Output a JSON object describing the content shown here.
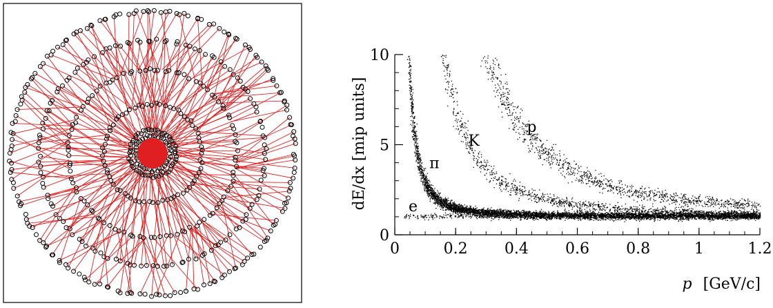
{
  "chart_data": [
    {
      "type": "diagram",
      "title": "",
      "frame": true,
      "colors": {
        "hit_stroke": "#000000",
        "track_line": "#e02020",
        "center_fill": "#e02020",
        "frame": "#000000"
      },
      "layers": [
        {
          "radius_fraction": 0.06,
          "hits": 12
        },
        {
          "radius_fraction": 0.12,
          "hits": 40
        },
        {
          "radius_fraction": 0.16,
          "hits": 54
        },
        {
          "radius_fraction": 0.34,
          "hits": 70
        },
        {
          "radius_fraction": 0.58,
          "hits": 100
        },
        {
          "radius_fraction": 0.78,
          "hits": 130
        },
        {
          "radius_fraction": 0.98,
          "hits": 180
        }
      ]
    },
    {
      "type": "scatter",
      "title": "",
      "xlabel_var": "p",
      "xlabel_unit": "[GeV/c]",
      "ylabel": "dE/dx [mip units]",
      "xlim": [
        0,
        1.2
      ],
      "ylim": [
        0,
        10
      ],
      "x_ticks": [
        "0",
        "0.2",
        "0.4",
        "0.6",
        "0.8",
        "1",
        "1.2"
      ],
      "y_ticks": [
        "0",
        "5",
        "10"
      ],
      "grid": false,
      "point_color": "#000000",
      "bands": [
        {
          "label": "e",
          "x": 0.06,
          "y": 1.3,
          "ref_value": 1.0,
          "ref_mass": null
        },
        {
          "label": "π",
          "x": 0.13,
          "y": 3.7,
          "ref_value": 1.0,
          "ref_mass": 0.1396
        },
        {
          "label": "K",
          "x": 0.26,
          "y": 4.95,
          "ref_value": 1.0,
          "ref_mass": 0.4937
        },
        {
          "label": "p",
          "x": 0.45,
          "y": 5.7,
          "ref_value": 1.0,
          "ref_mass": 0.9383
        }
      ]
    }
  ]
}
